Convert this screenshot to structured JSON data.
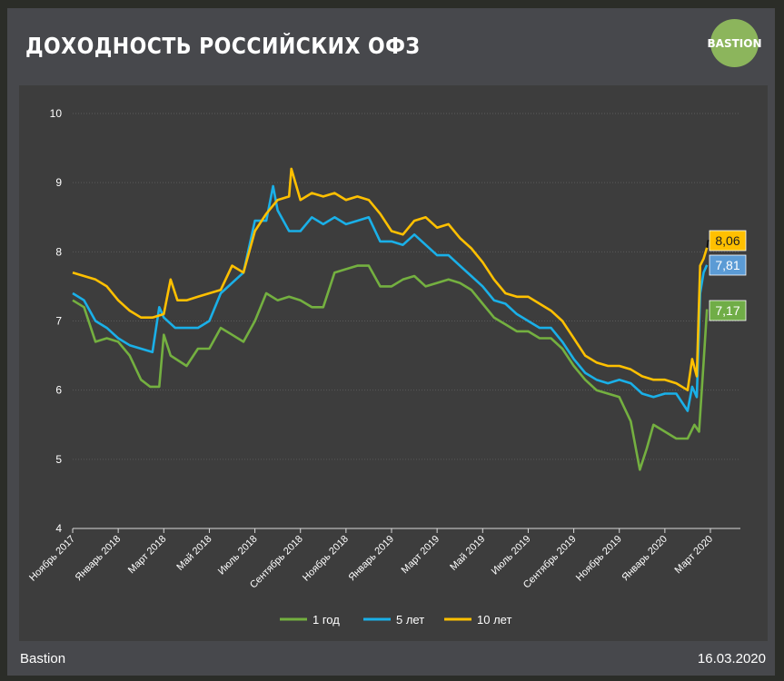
{
  "header": {
    "title": "ДОХОДНОСТЬ РОССИЙСКИХ ОФЗ",
    "logo_text": "BASTION"
  },
  "footer": {
    "source": "Bastion",
    "date": "16.03.2020"
  },
  "colors": {
    "green": "#74b040",
    "blue": "#1ab0e8",
    "orange": "#ffc000",
    "label_blue": "#5b9bd5",
    "label_green": "#70ad47"
  },
  "chart_data": {
    "type": "line",
    "title": "ДОХОДНОСТЬ РОССИЙСКИХ ОФЗ",
    "xlabel": "",
    "ylabel": "",
    "ylim": [
      4,
      10
    ],
    "yticks": [
      "4",
      "5",
      "6",
      "7",
      "8",
      "9",
      "10"
    ],
    "x_range": [
      0,
      28
    ],
    "x_ticks": [
      {
        "label": "Ноябрь 2017",
        "x": 0
      },
      {
        "label": "Январь 2018",
        "x": 2
      },
      {
        "label": "Март 2018",
        "x": 4
      },
      {
        "label": "Май 2018",
        "x": 6
      },
      {
        "label": "Июль 2018",
        "x": 8
      },
      {
        "label": "Сентябрь 2018",
        "x": 10
      },
      {
        "label": "Ноябрь 2018",
        "x": 12
      },
      {
        "label": "Январь 2019",
        "x": 14
      },
      {
        "label": "Март 2019",
        "x": 16
      },
      {
        "label": "Май 2019",
        "x": 18
      },
      {
        "label": "Июль 2019",
        "x": 20
      },
      {
        "label": "Сентябрь 2019",
        "x": 22
      },
      {
        "label": "Ноябрь 2019",
        "x": 24
      },
      {
        "label": "Январь 2020",
        "x": 26
      },
      {
        "label": "Март 2020",
        "x": 28
      }
    ],
    "series": [
      {
        "name": "1 год",
        "color_key": "green",
        "last_label": "7,17",
        "points": [
          [
            0,
            7.3
          ],
          [
            0.5,
            7.2
          ],
          [
            1,
            6.7
          ],
          [
            1.5,
            6.75
          ],
          [
            2,
            6.7
          ],
          [
            2.5,
            6.5
          ],
          [
            3,
            6.15
          ],
          [
            3.4,
            6.05
          ],
          [
            3.8,
            6.05
          ],
          [
            4,
            6.8
          ],
          [
            4.3,
            6.5
          ],
          [
            5,
            6.35
          ],
          [
            5.5,
            6.6
          ],
          [
            6,
            6.6
          ],
          [
            6.5,
            6.9
          ],
          [
            7,
            6.8
          ],
          [
            7.5,
            6.7
          ],
          [
            8,
            7.0
          ],
          [
            8.5,
            7.4
          ],
          [
            9,
            7.3
          ],
          [
            9.5,
            7.35
          ],
          [
            10,
            7.3
          ],
          [
            10.5,
            7.2
          ],
          [
            11,
            7.2
          ],
          [
            11.5,
            7.7
          ],
          [
            12,
            7.75
          ],
          [
            12.5,
            7.8
          ],
          [
            13,
            7.8
          ],
          [
            13.5,
            7.5
          ],
          [
            14,
            7.5
          ],
          [
            14.5,
            7.6
          ],
          [
            15,
            7.65
          ],
          [
            15.5,
            7.5
          ],
          [
            16,
            7.55
          ],
          [
            16.5,
            7.6
          ],
          [
            17,
            7.55
          ],
          [
            17.5,
            7.45
          ],
          [
            18,
            7.25
          ],
          [
            18.5,
            7.05
          ],
          [
            19,
            6.95
          ],
          [
            19.5,
            6.85
          ],
          [
            20,
            6.85
          ],
          [
            20.5,
            6.75
          ],
          [
            21,
            6.75
          ],
          [
            21.5,
            6.6
          ],
          [
            22,
            6.35
          ],
          [
            22.5,
            6.15
          ],
          [
            23,
            6.0
          ],
          [
            23.5,
            5.95
          ],
          [
            24,
            5.9
          ],
          [
            24.5,
            5.55
          ],
          [
            24.9,
            4.85
          ],
          [
            25.2,
            5.15
          ],
          [
            25.5,
            5.5
          ],
          [
            26,
            5.4
          ],
          [
            26.5,
            5.3
          ],
          [
            27,
            5.3
          ],
          [
            27.3,
            5.5
          ],
          [
            27.5,
            5.4
          ],
          [
            27.7,
            6.4
          ],
          [
            27.85,
            7.17
          ]
        ]
      },
      {
        "name": "5 лет",
        "color_key": "blue",
        "last_label": "7,81",
        "points": [
          [
            0,
            7.4
          ],
          [
            0.5,
            7.3
          ],
          [
            1,
            7.0
          ],
          [
            1.5,
            6.9
          ],
          [
            2,
            6.75
          ],
          [
            2.5,
            6.65
          ],
          [
            3,
            6.6
          ],
          [
            3.5,
            6.55
          ],
          [
            3.8,
            7.2
          ],
          [
            4,
            7.05
          ],
          [
            4.5,
            6.9
          ],
          [
            5,
            6.9
          ],
          [
            5.5,
            6.9
          ],
          [
            6,
            7.0
          ],
          [
            6.5,
            7.4
          ],
          [
            7,
            7.55
          ],
          [
            7.5,
            7.7
          ],
          [
            8,
            8.45
          ],
          [
            8.5,
            8.45
          ],
          [
            8.8,
            8.95
          ],
          [
            9,
            8.6
          ],
          [
            9.5,
            8.3
          ],
          [
            10,
            8.3
          ],
          [
            10.5,
            8.5
          ],
          [
            11,
            8.4
          ],
          [
            11.5,
            8.5
          ],
          [
            12,
            8.4
          ],
          [
            12.5,
            8.45
          ],
          [
            13,
            8.5
          ],
          [
            13.5,
            8.15
          ],
          [
            14,
            8.15
          ],
          [
            14.5,
            8.1
          ],
          [
            15,
            8.25
          ],
          [
            15.5,
            8.1
          ],
          [
            16,
            7.95
          ],
          [
            16.5,
            7.95
          ],
          [
            17,
            7.8
          ],
          [
            17.5,
            7.65
          ],
          [
            18,
            7.5
          ],
          [
            18.5,
            7.3
          ],
          [
            19,
            7.25
          ],
          [
            19.5,
            7.1
          ],
          [
            20,
            7.0
          ],
          [
            20.5,
            6.9
          ],
          [
            21,
            6.9
          ],
          [
            21.5,
            6.7
          ],
          [
            22,
            6.45
          ],
          [
            22.5,
            6.25
          ],
          [
            23,
            6.15
          ],
          [
            23.5,
            6.1
          ],
          [
            24,
            6.15
          ],
          [
            24.5,
            6.1
          ],
          [
            25,
            5.95
          ],
          [
            25.5,
            5.9
          ],
          [
            26,
            5.95
          ],
          [
            26.5,
            5.95
          ],
          [
            27,
            5.7
          ],
          [
            27.2,
            6.05
          ],
          [
            27.4,
            5.9
          ],
          [
            27.55,
            7.4
          ],
          [
            27.7,
            7.7
          ],
          [
            27.85,
            7.81
          ]
        ]
      },
      {
        "name": "10 лет",
        "color_key": "orange",
        "last_label": "8,06",
        "points": [
          [
            0,
            7.7
          ],
          [
            0.5,
            7.65
          ],
          [
            1,
            7.6
          ],
          [
            1.5,
            7.5
          ],
          [
            2,
            7.3
          ],
          [
            2.5,
            7.15
          ],
          [
            3,
            7.05
          ],
          [
            3.5,
            7.05
          ],
          [
            4,
            7.1
          ],
          [
            4.3,
            7.6
          ],
          [
            4.6,
            7.3
          ],
          [
            5,
            7.3
          ],
          [
            5.5,
            7.35
          ],
          [
            6,
            7.4
          ],
          [
            6.5,
            7.45
          ],
          [
            7,
            7.8
          ],
          [
            7.5,
            7.7
          ],
          [
            8,
            8.3
          ],
          [
            8.5,
            8.55
          ],
          [
            9,
            8.75
          ],
          [
            9.5,
            8.8
          ],
          [
            9.6,
            9.2
          ],
          [
            10,
            8.75
          ],
          [
            10.5,
            8.85
          ],
          [
            11,
            8.8
          ],
          [
            11.5,
            8.85
          ],
          [
            12,
            8.75
          ],
          [
            12.5,
            8.8
          ],
          [
            13,
            8.75
          ],
          [
            13.5,
            8.55
          ],
          [
            14,
            8.3
          ],
          [
            14.5,
            8.25
          ],
          [
            15,
            8.45
          ],
          [
            15.5,
            8.5
          ],
          [
            16,
            8.35
          ],
          [
            16.5,
            8.4
          ],
          [
            17,
            8.2
          ],
          [
            17.5,
            8.05
          ],
          [
            18,
            7.85
          ],
          [
            18.5,
            7.6
          ],
          [
            19,
            7.4
          ],
          [
            19.5,
            7.35
          ],
          [
            20,
            7.35
          ],
          [
            20.5,
            7.25
          ],
          [
            21,
            7.15
          ],
          [
            21.5,
            7.0
          ],
          [
            22,
            6.75
          ],
          [
            22.5,
            6.5
          ],
          [
            23,
            6.4
          ],
          [
            23.5,
            6.35
          ],
          [
            24,
            6.35
          ],
          [
            24.5,
            6.3
          ],
          [
            25,
            6.2
          ],
          [
            25.5,
            6.15
          ],
          [
            26,
            6.15
          ],
          [
            26.5,
            6.1
          ],
          [
            27,
            6.0
          ],
          [
            27.2,
            6.45
          ],
          [
            27.4,
            6.2
          ],
          [
            27.55,
            7.8
          ],
          [
            27.7,
            7.9
          ],
          [
            27.85,
            8.06
          ]
        ]
      }
    ]
  }
}
